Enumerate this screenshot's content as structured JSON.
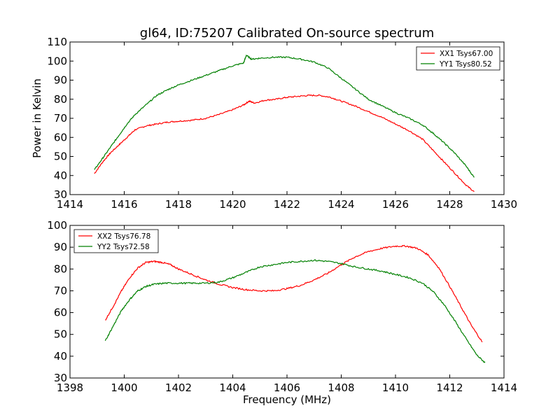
{
  "figure": {
    "title": "gl64, ID:75207 Calibrated On-source spectrum"
  },
  "chart_data": [
    {
      "type": "line",
      "title": "gl64, ID:75207 Calibrated On-source spectrum",
      "xlabel": "",
      "ylabel": "Power in Kelvin",
      "xlim": [
        1414,
        1430
      ],
      "ylim": [
        30,
        110
      ],
      "xticks": [
        "1414",
        "1416",
        "1418",
        "1420",
        "1422",
        "1424",
        "1426",
        "1428",
        "1430"
      ],
      "yticks": [
        "30",
        "40",
        "50",
        "60",
        "70",
        "80",
        "90",
        "100",
        "110"
      ],
      "grid": false,
      "legend_position": "top-right",
      "series": [
        {
          "name": "XX1 Tsys67.00",
          "color": "#ff0000",
          "x": [
            1414.9,
            1415.2,
            1415.5,
            1415.8,
            1416.1,
            1416.4,
            1416.8,
            1417.2,
            1417.6,
            1418.0,
            1418.5,
            1419.0,
            1419.5,
            1420.0,
            1420.4,
            1420.6,
            1420.8,
            1421.2,
            1421.6,
            1422.0,
            1422.4,
            1422.8,
            1423.2,
            1423.6,
            1424.0,
            1424.5,
            1425.0,
            1425.5,
            1426.0,
            1426.5,
            1427.0,
            1427.4,
            1427.8,
            1428.2,
            1428.6,
            1428.9
          ],
          "y": [
            41,
            47,
            52,
            56,
            60,
            64,
            66,
            67,
            68,
            68.5,
            69,
            70,
            72,
            74.5,
            77,
            79,
            78,
            79.5,
            80,
            81,
            81.5,
            82,
            82,
            81,
            79,
            76.5,
            73.5,
            70.5,
            67,
            63.5,
            59,
            53,
            47,
            41,
            35,
            31.5
          ]
        },
        {
          "name": "YY1 Tsys80.52",
          "color": "#008000",
          "x": [
            1414.9,
            1415.2,
            1415.5,
            1415.8,
            1416.1,
            1416.4,
            1416.8,
            1417.2,
            1417.6,
            1418.0,
            1418.5,
            1419.0,
            1419.5,
            1420.0,
            1420.4,
            1420.5,
            1420.7,
            1421.0,
            1421.5,
            1422.0,
            1422.5,
            1423.0,
            1423.5,
            1424.0,
            1424.5,
            1425.0,
            1425.5,
            1426.0,
            1426.5,
            1427.0,
            1427.4,
            1427.8,
            1428.2,
            1428.6,
            1428.9
          ],
          "y": [
            43,
            49,
            55,
            61,
            67,
            72,
            77,
            82,
            85,
            87.5,
            90,
            92.5,
            95,
            97.5,
            99,
            103,
            101,
            101.5,
            102,
            102,
            101,
            99.5,
            96.5,
            91,
            85.5,
            80,
            76.5,
            73,
            70,
            66.5,
            62,
            57,
            51.5,
            45,
            39
          ]
        }
      ]
    },
    {
      "type": "line",
      "title": "",
      "xlabel": "Frequency (MHz)",
      "ylabel": "",
      "xlim": [
        1398,
        1414
      ],
      "ylim": [
        30,
        100
      ],
      "xticks": [
        "1398",
        "1400",
        "1402",
        "1404",
        "1406",
        "1408",
        "1410",
        "1412",
        "1414"
      ],
      "yticks": [
        "30",
        "40",
        "50",
        "60",
        "70",
        "80",
        "90",
        "100"
      ],
      "grid": false,
      "legend_position": "top-left",
      "series": [
        {
          "name": "XX2 Tsys76.78",
          "color": "#ff0000",
          "x": [
            1399.3,
            1399.6,
            1399.9,
            1400.2,
            1400.5,
            1400.8,
            1401.1,
            1401.4,
            1401.7,
            1402.0,
            1402.5,
            1403.0,
            1403.5,
            1404.0,
            1404.5,
            1405.0,
            1405.5,
            1406.0,
            1406.5,
            1407.0,
            1407.5,
            1408.0,
            1408.5,
            1409.0,
            1409.5,
            1410.0,
            1410.4,
            1410.8,
            1411.2,
            1411.6,
            1412.0,
            1412.4,
            1412.8,
            1413.2
          ],
          "y": [
            56.5,
            63,
            70,
            76,
            80.5,
            83,
            83.5,
            83,
            82,
            80,
            77.5,
            75,
            73,
            71.5,
            70.5,
            70,
            70,
            71,
            72.5,
            75,
            78,
            82,
            85.5,
            88,
            89.5,
            90.5,
            90.5,
            89.5,
            86.5,
            80.5,
            72,
            63,
            54,
            46.5
          ]
        },
        {
          "name": "YY2 Tsys72.58",
          "color": "#008000",
          "x": [
            1399.3,
            1399.6,
            1399.9,
            1400.2,
            1400.5,
            1400.8,
            1401.1,
            1401.5,
            1402.0,
            1402.5,
            1403.0,
            1403.5,
            1404.0,
            1404.5,
            1405.0,
            1405.5,
            1406.0,
            1406.5,
            1407.0,
            1407.5,
            1408.0,
            1408.5,
            1409.0,
            1409.5,
            1410.0,
            1410.5,
            1411.0,
            1411.4,
            1411.8,
            1412.2,
            1412.6,
            1413.0,
            1413.3
          ],
          "y": [
            47,
            54,
            61,
            66,
            70,
            72,
            73,
            73.5,
            73.5,
            73.5,
            73.5,
            74,
            76,
            78.5,
            81,
            82,
            83,
            83.5,
            84,
            83.5,
            82.5,
            81,
            80,
            79,
            77.5,
            76,
            73.5,
            69.5,
            63.5,
            56,
            48,
            40.5,
            37
          ]
        }
      ]
    }
  ]
}
